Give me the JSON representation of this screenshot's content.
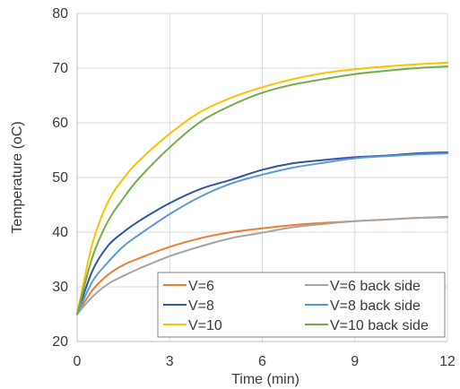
{
  "chart_data": {
    "type": "line",
    "title": "",
    "xlabel": "Time (min)",
    "ylabel": "Temperature (oC)",
    "xlim": [
      0,
      12
    ],
    "ylim": [
      20,
      80
    ],
    "xticks": [
      0,
      3,
      6,
      9,
      12
    ],
    "yticks": [
      20,
      30,
      40,
      50,
      60,
      70,
      80
    ],
    "grid": true,
    "legend_position": "bottom-right",
    "legend_columns": 2,
    "series": [
      {
        "name": "V=6",
        "color": "#ed7d31",
        "x": [
          0,
          0.5,
          1,
          1.5,
          2,
          3,
          4,
          5,
          6,
          7,
          8,
          9,
          10,
          11,
          12
        ],
        "y": [
          25,
          29.4,
          32.2,
          34,
          35.2,
          37.3,
          38.9,
          40,
          40.7,
          41.3,
          41.7,
          42,
          42.3,
          42.6,
          42.8
        ]
      },
      {
        "name": "V=6 back side",
        "color": "#a5a5a5",
        "x": [
          0,
          0.5,
          1,
          1.5,
          2,
          3,
          4,
          5,
          6,
          7,
          8,
          9,
          10,
          11,
          12
        ],
        "y": [
          25,
          28.2,
          30.5,
          32,
          33.3,
          35.6,
          37.4,
          38.9,
          39.9,
          40.9,
          41.5,
          42,
          42.3,
          42.6,
          42.7
        ]
      },
      {
        "name": "V=8",
        "color": "#2f55a4",
        "x": [
          0,
          0.5,
          1,
          1.5,
          2,
          3,
          4,
          5,
          6,
          7,
          8,
          9,
          10,
          11,
          12
        ],
        "y": [
          25,
          33,
          37.5,
          40,
          42,
          45.3,
          47.9,
          49.6,
          51.4,
          52.6,
          53.2,
          53.7,
          54,
          54.4,
          54.6
        ]
      },
      {
        "name": "V=8 back side",
        "color": "#5b9bd5",
        "x": [
          0,
          0.5,
          1,
          1.5,
          2,
          3,
          4,
          5,
          6,
          7,
          8,
          9,
          10,
          11,
          12
        ],
        "y": [
          25,
          31,
          34.5,
          37.4,
          39.5,
          43.3,
          46.5,
          48.9,
          50.5,
          51.8,
          52.7,
          53.5,
          53.9,
          54.2,
          54.4
        ]
      },
      {
        "name": "V=10",
        "color": "#ffc000",
        "x": [
          0,
          0.5,
          1,
          1.5,
          2,
          3,
          4,
          5,
          6,
          7,
          8,
          9,
          10,
          11,
          12
        ],
        "y": [
          25,
          38,
          45.5,
          49.8,
          53,
          58,
          62,
          64.6,
          66.5,
          68,
          69.1,
          69.8,
          70.3,
          70.7,
          71
        ]
      },
      {
        "name": "V=10 back side",
        "color": "#70ad47",
        "x": [
          0,
          0.5,
          1,
          1.5,
          2,
          3,
          4,
          5,
          6,
          7,
          8,
          9,
          10,
          11,
          12
        ],
        "y": [
          25,
          35.5,
          42,
          46.2,
          49.8,
          55.5,
          60.2,
          63.2,
          65.5,
          67,
          68,
          68.9,
          69.5,
          70,
          70.3
        ]
      }
    ]
  }
}
